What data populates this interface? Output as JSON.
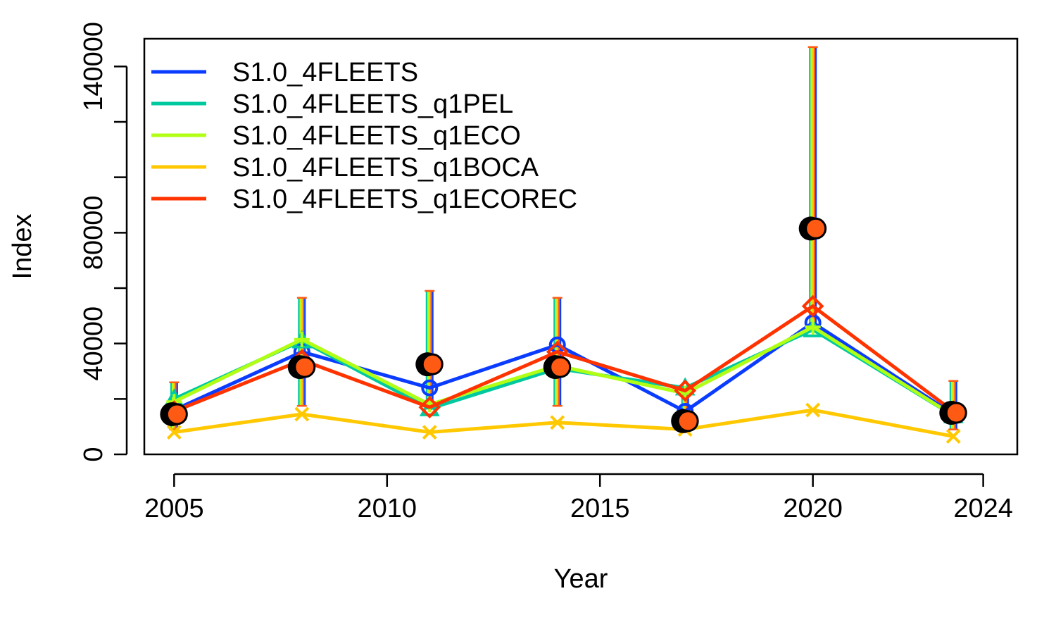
{
  "chart_data": {
    "type": "line",
    "title": "",
    "xlabel": "Year",
    "ylabel": "Index",
    "xlim": [
      2004.3,
      2024.8
    ],
    "ylim": [
      0,
      150000
    ],
    "x_ticks": [
      2005,
      2010,
      2015,
      2020,
      2024
    ],
    "y_ticks": [
      0,
      40000,
      80000,
      140000
    ],
    "y_minor_ticks": [
      20000,
      60000,
      100000,
      120000
    ],
    "grid": false,
    "legend_position": "top-left",
    "x": [
      2005,
      2008,
      2011,
      2014,
      2017,
      2020,
      2023.3
    ],
    "series": [
      {
        "name": "S1.0_4FLEETS",
        "color": "#0a3cff",
        "marker": "circle",
        "values": [
          16000,
          37000,
          24000,
          39500,
          15500,
          47500,
          14500
        ]
      },
      {
        "name": "S1.0_4FLEETS_q1PEL",
        "color": "#00c9a0",
        "marker": "triangle",
        "values": [
          20000,
          41000,
          16500,
          31000,
          24000,
          45000,
          14000
        ]
      },
      {
        "name": "S1.0_4FLEETS_q1ECO",
        "color": "#b0ff14",
        "marker": "plus",
        "values": [
          19000,
          41500,
          18000,
          32000,
          22000,
          46000,
          14000
        ]
      },
      {
        "name": "S1.0_4FLEETS_q1BOCA",
        "color": "#ffc800",
        "marker": "x",
        "values": [
          8000,
          14500,
          8000,
          11500,
          9000,
          16000,
          6500
        ]
      },
      {
        "name": "S1.0_4FLEETS_q1ECOREC",
        "color": "#ff3300",
        "marker": "diamond",
        "values": [
          15500,
          34000,
          17000,
          37000,
          23000,
          53500,
          15500
        ]
      }
    ],
    "observed": {
      "x": [
        2005,
        2008,
        2011,
        2014,
        2017,
        2020,
        2023.3
      ],
      "values": [
        14500,
        31500,
        32500,
        31500,
        12000,
        81500,
        15000
      ],
      "lower": [
        9000,
        17500,
        18000,
        17500,
        8000,
        45000,
        9000
      ],
      "upper": [
        26000,
        56500,
        59000,
        56500,
        21000,
        147000,
        26500
      ],
      "fill_color": "#ff5a14"
    },
    "errorbar_colors": [
      "#00c9a0",
      "#b0ff14",
      "#ffc800",
      "#ff5a14",
      "#0a3cff"
    ]
  }
}
